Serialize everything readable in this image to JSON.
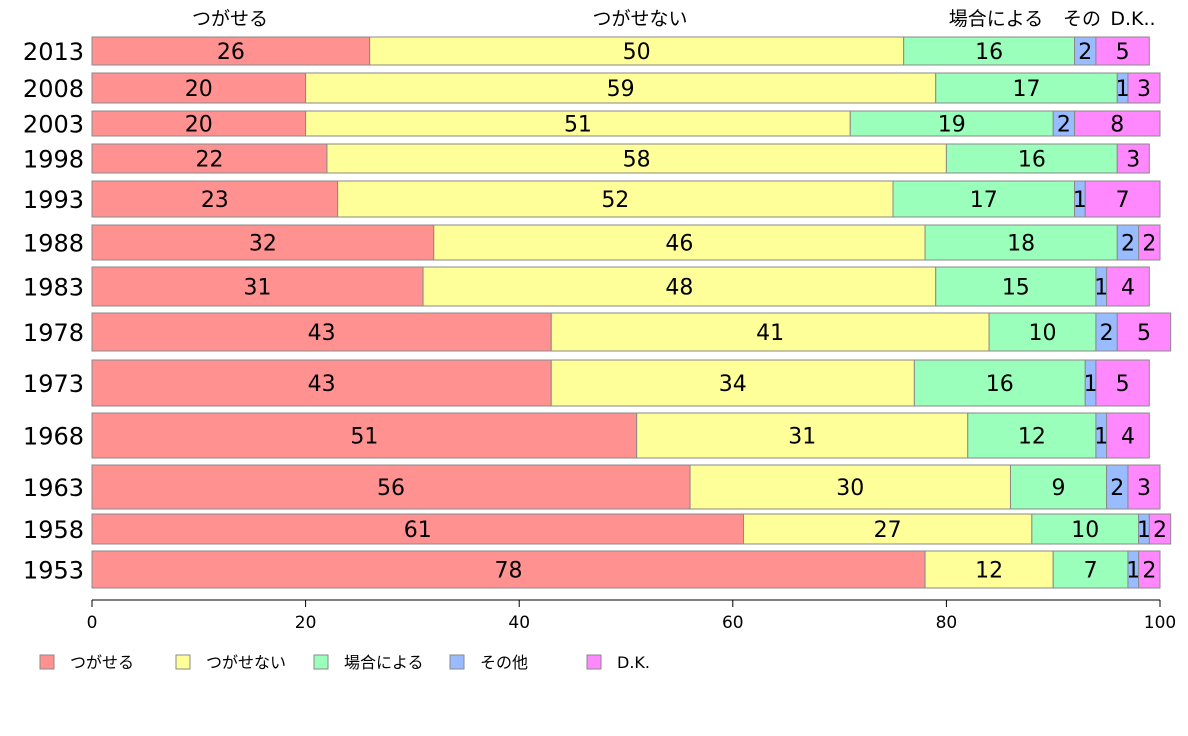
{
  "chart_data": {
    "type": "bar",
    "orientation": "horizontal",
    "stacked": true,
    "categories": [
      "2013",
      "2008",
      "2003",
      "1998",
      "1993",
      "1988",
      "1983",
      "1978",
      "1973",
      "1968",
      "1963",
      "1958",
      "1953"
    ],
    "series": [
      {
        "name": "つがせる",
        "color": "#ff9191",
        "values": [
          26,
          20,
          20,
          22,
          23,
          32,
          31,
          43,
          43,
          51,
          56,
          61,
          78
        ]
      },
      {
        "name": "つがせない",
        "color": "#ffff99",
        "values": [
          50,
          59,
          51,
          58,
          52,
          46,
          48,
          41,
          34,
          31,
          30,
          27,
          12
        ]
      },
      {
        "name": "場合による",
        "color": "#99ffbb",
        "values": [
          16,
          17,
          19,
          16,
          17,
          18,
          15,
          10,
          16,
          12,
          9,
          10,
          7
        ]
      },
      {
        "name": "その他",
        "color": "#99bbff",
        "values": [
          2,
          1,
          2,
          0,
          1,
          2,
          1,
          2,
          1,
          1,
          2,
          1,
          1
        ]
      },
      {
        "name": "D.K.",
        "color": "#ff88ff",
        "values": [
          5,
          3,
          8,
          3,
          7,
          2,
          4,
          5,
          5,
          4,
          3,
          2,
          2
        ]
      }
    ],
    "top_labels": [
      "つがせる",
      "つがせない",
      "場合による",
      "その",
      "D.K.."
    ],
    "xlim": [
      0,
      100
    ],
    "xticks": [
      "0",
      "20",
      "40",
      "60",
      "80",
      "100"
    ],
    "legend_position": "bottom"
  }
}
